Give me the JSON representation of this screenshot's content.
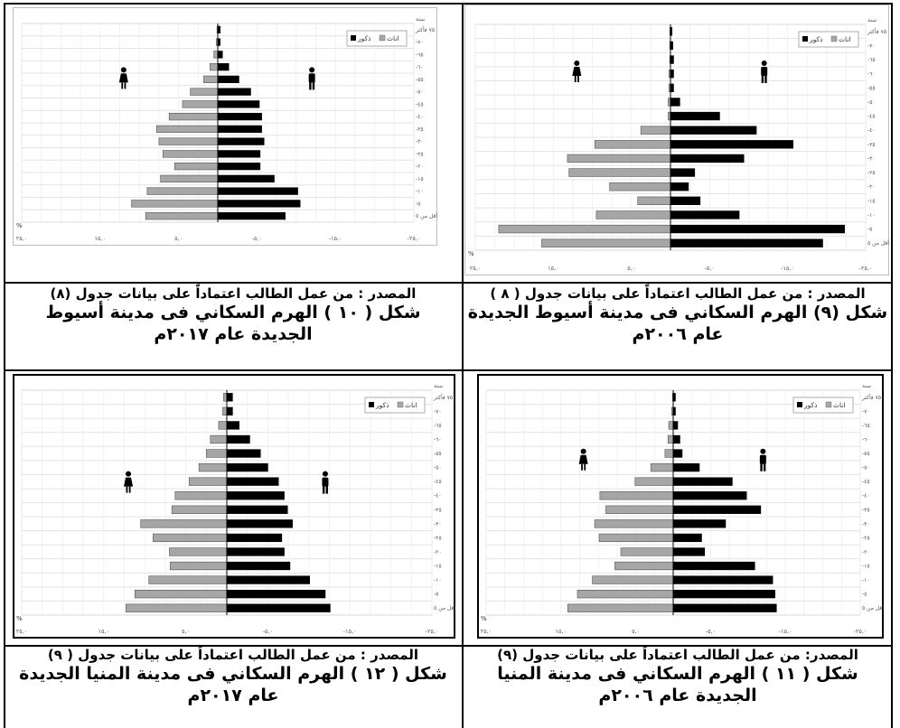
{
  "charts": [
    {
      "source": "المصدر : من عمل الطالب اعتماداً على بيانات جدول (٨)",
      "title_line1": "شكل ( ١٠ ) الهرم السكاني فى مدينة أسيوط",
      "title_line2": "الجديدة عام ٢٠١٧م"
    },
    {
      "source": "المصدر : من عمل الطالب اعتماداً على بيانات جدول ( ٨ )",
      "title_line1": "شكل (٩) الهرم السكاني فى مدينة أسيوط الجديدة",
      "title_line2": "عام ٢٠٠٦م"
    },
    {
      "source": "المصدر : من عمل الطالب اعتماداً على بيانات جدول ( ٩)",
      "title_line1": "شكل ( ١٢ ) الهرم السكاني فى مدينة المنيا الجديدة",
      "title_line2": "عام ٢٠١٧م"
    },
    {
      "source": "المصدر: من عمل الطالب اعتماداً على بيانات جدول (٩)",
      "title_line1": "شكل ( ١١ ) الهرم السكاني فى مدينة المنيا",
      "title_line2": "الجديدة عام ٢٠٠٦م"
    }
  ],
  "chart_data": [
    {
      "type": "bar",
      "orientation": "horizontal-pyramid",
      "categories": [
        "أقل من ٥",
        "-٥",
        "-١٠",
        "-١٥",
        "-٢٠",
        "-٢٥",
        "-٣٠",
        "-٣٥",
        "-٤٠",
        "-٤٥",
        "-٥٠",
        "-٥٥",
        "-٦٠",
        "-٦٥",
        "-٧٠",
        "٧٥ فأكثر"
      ],
      "age_label": "سنة",
      "y_top_label": "٧٥ فأكثر",
      "x_ticks": [
        "٢٥,٠",
        "١٥,٠",
        "٥,٠",
        "-٥,٠",
        "-١٥,٠",
        "-٢٥,٠"
      ],
      "x_tick_values": [
        -25,
        -15,
        -5,
        5,
        15,
        25
      ],
      "xlim": [
        -25,
        25
      ],
      "x_unit": "%",
      "series": [
        {
          "name": "اناث",
          "color": "#a6a6a6",
          "values": [
            9.2,
            11.0,
            9.0,
            7.3,
            5.5,
            7.0,
            7.5,
            7.8,
            6.2,
            4.5,
            3.5,
            1.8,
            1.0,
            0.5,
            0.2,
            0.1
          ]
        },
        {
          "name": "ذكور",
          "color": "#000000",
          "values": [
            8.6,
            10.5,
            10.2,
            7.2,
            5.4,
            5.4,
            5.9,
            5.6,
            5.6,
            5.3,
            4.2,
            2.7,
            1.4,
            0.6,
            0.3,
            0.3
          ]
        }
      ],
      "legend_position": "top-right",
      "grid": true
    },
    {
      "type": "bar",
      "orientation": "horizontal-pyramid",
      "categories": [
        "أقل من ٥",
        "-٥",
        "-١٠",
        "-١٥",
        "-٢٠",
        "-٢٥",
        "-٣٠",
        "-٣٥",
        "-٤٠",
        "-٤٥",
        "-٥٠",
        "-٥٥",
        "-٦٠",
        "-٦٥",
        "-٧٠",
        "٧٥ فأكثر"
      ],
      "age_label": "سنة",
      "y_top_label": "٧٥ فأكثر",
      "x_ticks": [
        "٢٥,٠",
        "١٥,٠",
        "٥,٠",
        "-٥,٠",
        "-١٥,٠",
        "-٢٥,٠"
      ],
      "x_tick_values": [
        -25,
        -15,
        -5,
        5,
        15,
        25
      ],
      "xlim": [
        -25,
        25
      ],
      "x_unit": "%",
      "series": [
        {
          "name": "اناث",
          "color": "#a6a6a6",
          "values": [
            16.5,
            22.0,
            9.5,
            4.2,
            7.8,
            13.0,
            13.2,
            9.7,
            3.8,
            0.3,
            0.3,
            0.2,
            0.2,
            0.1,
            0.1,
            0.1
          ]
        },
        {
          "name": "ذكور",
          "color": "#000000",
          "values": [
            19.5,
            22.3,
            8.8,
            3.8,
            2.3,
            3.1,
            9.4,
            15.7,
            11.0,
            6.3,
            1.2,
            0.4,
            0.4,
            0.4,
            0.3,
            0.2
          ]
        }
      ],
      "legend_position": "top-right",
      "grid": true
    },
    {
      "type": "bar",
      "orientation": "horizontal-pyramid",
      "categories": [
        "أقل من ٥",
        "-٥",
        "-١٠",
        "-١٥",
        "-٢٠",
        "-٢٥",
        "-٣٠",
        "-٣٥",
        "-٤٠",
        "-٤٥",
        "-٥٠",
        "-٥٥",
        "-٦٠",
        "-٦٥",
        "-٧٠",
        "٧٥ فأكثر"
      ],
      "age_label": "سنة",
      "y_top_label": "٧٥ فأكثر",
      "x_ticks": [
        "٢٥,٠",
        "١٥,٠",
        "٥,٠",
        "-٥,٠",
        "-١٥,٠",
        "-٢٥,٠"
      ],
      "x_tick_values": [
        -25,
        -15,
        -5,
        5,
        15,
        25
      ],
      "xlim": [
        -25,
        25
      ],
      "x_unit": "%",
      "series": [
        {
          "name": "اناث",
          "color": "#a6a6a6",
          "values": [
            12.3,
            11.2,
            9.5,
            6.9,
            7.0,
            9.0,
            10.5,
            6.7,
            6.3,
            4.6,
            3.4,
            2.5,
            2.0,
            1.0,
            0.5,
            0.4
          ]
        },
        {
          "name": "ذكور",
          "color": "#000000",
          "values": [
            12.6,
            12.0,
            10.1,
            7.7,
            7.0,
            6.7,
            8.0,
            7.4,
            7.0,
            6.3,
            5.0,
            4.1,
            2.8,
            1.5,
            0.7,
            0.7
          ]
        }
      ],
      "legend_position": "top-right",
      "grid": true
    },
    {
      "type": "bar",
      "orientation": "horizontal-pyramid",
      "categories": [
        "أقل من ٥",
        "-٥",
        "-١٠",
        "-١٥",
        "-٢٠",
        "-٢٥",
        "-٣٠",
        "-٣٥",
        "-٤٠",
        "-٤٥",
        "-٥٠",
        "-٥٥",
        "-٦٠",
        "-٦٥",
        "-٧٠",
        "٧٥ فأكثر"
      ],
      "age_label": "سنة",
      "y_top_label": "٧٥ فأكثر",
      "x_ticks": [
        "٢٥,٠",
        "١٥,٠",
        "٥,٠",
        "-٥,٠",
        "-١٥,٠",
        "-٢٥,٠"
      ],
      "x_tick_values": [
        -25,
        -15,
        -5,
        5,
        15,
        25
      ],
      "xlim": [
        -25,
        25
      ],
      "x_unit": "%",
      "series": [
        {
          "name": "اناث",
          "color": "#a6a6a6",
          "values": [
            14.1,
            12.8,
            10.8,
            7.8,
            7.0,
            9.9,
            10.5,
            9.0,
            9.8,
            5.1,
            3.0,
            1.1,
            0.7,
            0.6,
            0.2,
            0.1
          ]
        },
        {
          "name": "ذكور",
          "color": "#000000",
          "values": [
            13.8,
            13.6,
            13.3,
            10.9,
            4.2,
            3.8,
            7.0,
            11.7,
            9.8,
            7.9,
            3.5,
            1.2,
            0.9,
            0.6,
            0.3,
            0.3
          ]
        }
      ],
      "legend_position": "top-right",
      "grid": true
    }
  ]
}
